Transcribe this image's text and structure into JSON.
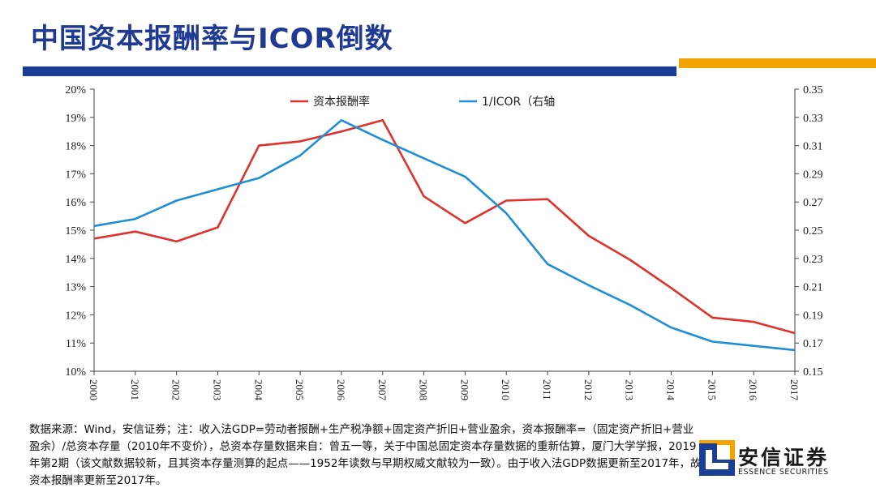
{
  "title": "中国资本报酬率与ICOR倒数",
  "colors": {
    "title": "#1f3a93",
    "bar_blue": "#1a3e95",
    "bar_orange": "#f5a300",
    "series_red": "#e0322c",
    "series_blue": "#1e8fd5"
  },
  "chart_data": {
    "type": "line",
    "x": [
      "2000",
      "2001",
      "2002",
      "2003",
      "2004",
      "2005",
      "2006",
      "2007",
      "2008",
      "2009",
      "2010",
      "2011",
      "2012",
      "2013",
      "2014",
      "2015",
      "2016",
      "2017"
    ],
    "series": [
      {
        "name": "资本报酬率",
        "axis": "left",
        "color": "#e0322c",
        "values": [
          14.7,
          14.95,
          14.6,
          15.1,
          18.0,
          18.15,
          18.5,
          18.9,
          16.2,
          15.25,
          16.05,
          16.1,
          14.8,
          13.95,
          12.95,
          11.9,
          11.75,
          11.35
        ]
      },
      {
        "name": "1/ICOR（右轴",
        "axis": "right",
        "color": "#1e8fd5",
        "values": [
          0.253,
          0.258,
          0.271,
          0.279,
          0.287,
          0.303,
          0.328,
          0.314,
          0.301,
          0.288,
          0.262,
          0.226,
          0.211,
          0.197,
          0.181,
          0.171,
          0.168,
          0.165
        ]
      }
    ],
    "left_axis": {
      "min": 10,
      "max": 20,
      "step": 1,
      "ticks": [
        "10%",
        "11%",
        "12%",
        "13%",
        "14%",
        "15%",
        "16%",
        "17%",
        "18%",
        "19%",
        "20%"
      ]
    },
    "right_axis": {
      "min": 0.15,
      "max": 0.35,
      "step": 0.02,
      "ticks": [
        "0.15",
        "0.17",
        "0.19",
        "0.21",
        "0.23",
        "0.25",
        "0.27",
        "0.29",
        "0.31",
        "0.33",
        "0.35"
      ]
    },
    "legend_position": "top-center"
  },
  "footnote": "数据来源：Wind，安信证券；注：收入法GDP=劳动者报酬+生产税净额+固定资产折旧+营业盈余，资本报酬率=（固定资产折旧+营业盈余）/总资本存量（2010年不变价），总资本存量数据来自：曾五一等，关于中国总固定资本存量数据的重新估算，厦门大学学报，2019年第2期（该文献数据较新，且其资本存量测算的起点——1952年读数与早期权威文献较为一致）。由于收入法GDP数据更新至2017年，故资本报酬率更新至2017年。",
  "logo": {
    "name": "安信证券",
    "sub": "ESSENCE SECURITIES"
  }
}
